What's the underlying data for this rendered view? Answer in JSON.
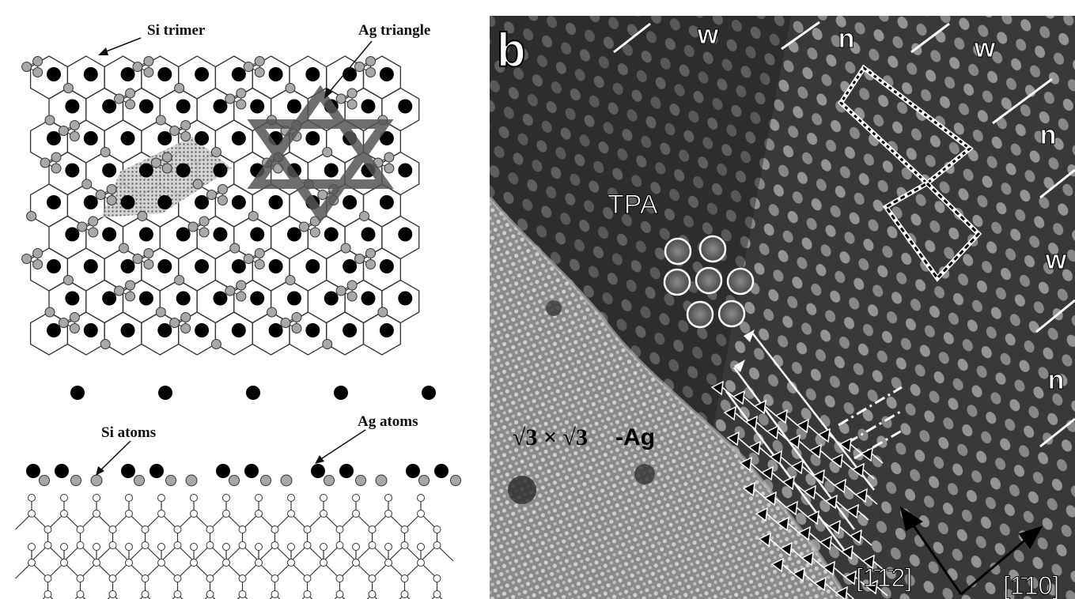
{
  "left_panel": {
    "top_view": {
      "labels": {
        "si_trimer": "Si trimer",
        "ag_triangle": "Ag triangle"
      }
    },
    "side_view": {
      "labels": {
        "si_atoms": "Si atoms",
        "ag_atoms": "Ag atoms"
      }
    }
  },
  "right_panel": {
    "panel_letter": "b",
    "labels": {
      "tpa": "TPA",
      "surface_prefix": "√3 × √3",
      "surface_suffix": "-Ag"
    },
    "domain_labels_top": [
      "w",
      "n",
      "w"
    ],
    "domain_labels_right": [
      "n",
      "w",
      "n"
    ],
    "directions": {
      "left": "[1̄1̄2]",
      "right": "[1̄10]"
    }
  },
  "colors": {
    "ag_atom": "#000000",
    "si_atom": "#a8a8a8",
    "lattice_line": "#333333",
    "stm_background": "#4a4a4a",
    "annotation": "#ffffff"
  }
}
